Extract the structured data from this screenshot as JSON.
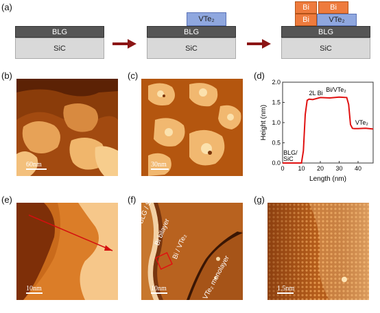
{
  "panels": {
    "a": "(a)",
    "b": "(b)",
    "c": "(c)",
    "d": "(d)",
    "e": "(e)",
    "f": "(f)",
    "g": "(g)"
  },
  "schematic": {
    "bottom": "SiC",
    "graphene": "BLG",
    "vte2": "VTe₂",
    "bi": "Bi"
  },
  "scale_bars": {
    "b": "60nm",
    "c": "30nm",
    "e": "10nm",
    "f": "10nm",
    "g": "1.5nm"
  },
  "annotations_f": {
    "blg_sic": "BLG / SiC",
    "bi_bilayer": "Bi bilayer",
    "bi_vte2": "Bi / VTe₂",
    "vte2_mono": "VTe₂ monolayer"
  },
  "colors": {
    "afm_dark": "#5a1f05",
    "afm_mid": "#c2621c",
    "afm_light": "#f5c98a",
    "arrow": "#a52020",
    "profile": "#e01010"
  },
  "chart_data": {
    "type": "line",
    "xlabel": "Length (nm)",
    "ylabel": "Height (nm)",
    "xlim": [
      0,
      48
    ],
    "ylim": [
      0,
      2.0
    ],
    "xticks": [
      0,
      10,
      20,
      30,
      40
    ],
    "yticks": [
      0.0,
      0.5,
      1.0,
      1.5,
      2.0
    ],
    "x": [
      0,
      5,
      10,
      11,
      12,
      13,
      14,
      16,
      20,
      25,
      30,
      34,
      35,
      36,
      37,
      38,
      40,
      44,
      48
    ],
    "y": [
      0.0,
      0.0,
      0.0,
      0.3,
      1.2,
      1.55,
      1.58,
      1.57,
      1.62,
      1.61,
      1.63,
      1.62,
      1.45,
      0.95,
      0.86,
      0.85,
      0.85,
      0.86,
      0.84
    ],
    "annotations": [
      {
        "text": "2L Bi",
        "x": 14,
        "y": 1.68
      },
      {
        "text": "Bi/VTe₂",
        "x": 23,
        "y": 1.76
      },
      {
        "text": "VTe₂",
        "x": 38.5,
        "y": 0.95
      },
      {
        "text": "BLG/",
        "x": 0.4,
        "y": 0.2
      },
      {
        "text": "SiC",
        "x": 0.4,
        "y": 0.05
      }
    ]
  }
}
